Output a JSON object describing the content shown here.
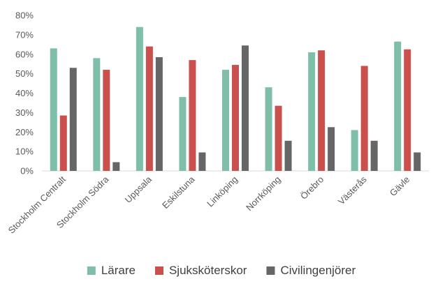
{
  "chart_data": {
    "type": "bar",
    "categories": [
      "Stockholm Centralt",
      "Stockholm Södra",
      "Uppsala",
      "Eskilstuna",
      "Linköping",
      "Norrköping",
      "Örebro",
      "Västerås",
      "Gävle"
    ],
    "series": [
      {
        "name": "Lärare",
        "color": "#7fbfa9",
        "values": [
          63,
          58,
          74,
          38,
          52,
          43,
          61,
          21,
          66.5
        ]
      },
      {
        "name": "Sjuksköterskor",
        "color": "#c9504c",
        "values": [
          28.5,
          52,
          64,
          57,
          54.5,
          33.5,
          62,
          54,
          62.5
        ]
      },
      {
        "name": "Civilingenjörer",
        "color": "#666666",
        "values": [
          53,
          4.5,
          58.5,
          9.5,
          64.5,
          15.5,
          22.5,
          15.5,
          9.5
        ]
      }
    ],
    "y_ticks": [
      "0%",
      "10%",
      "20%",
      "30%",
      "40%",
      "50%",
      "60%",
      "70%",
      "80%"
    ],
    "ylim": [
      0,
      80
    ],
    "title": "",
    "xlabel": "",
    "ylabel": "",
    "grid": false,
    "legend_position": "bottom"
  }
}
